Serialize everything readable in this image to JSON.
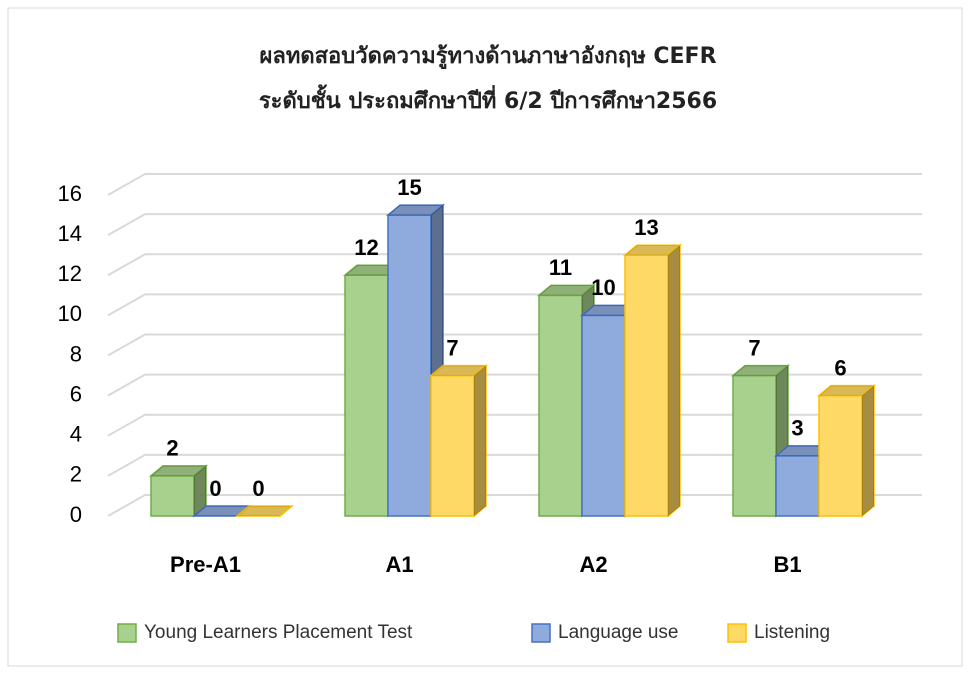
{
  "chart_data": {
    "type": "bar3d",
    "title": "ผลทดสอบวัดความรู้ทางด้านภาษาอังกฤษ CEFR",
    "subtitle": "ระดับชั้น ประถมศึกษาปีที่ 6/2 ปีการศึกษา2566",
    "categories": [
      "Pre-A1",
      "A1",
      "A2",
      "B1"
    ],
    "series": [
      {
        "name": "Young Learners Placement Test",
        "color": "#a9d18e",
        "edge": "#70ad47",
        "values": [
          2,
          12,
          11,
          7
        ]
      },
      {
        "name": "Language use",
        "color": "#8faadc",
        "edge": "#4472c4",
        "values": [
          0,
          15,
          10,
          3
        ]
      },
      {
        "name": "Listening",
        "color": "#ffd966",
        "edge": "#ffc000",
        "values": [
          0,
          7,
          13,
          6
        ]
      }
    ],
    "ylim": [
      0,
      16
    ],
    "yticks": [
      0,
      2,
      4,
      6,
      8,
      10,
      12,
      14,
      16
    ],
    "grid": true,
    "legend": "bottom"
  }
}
